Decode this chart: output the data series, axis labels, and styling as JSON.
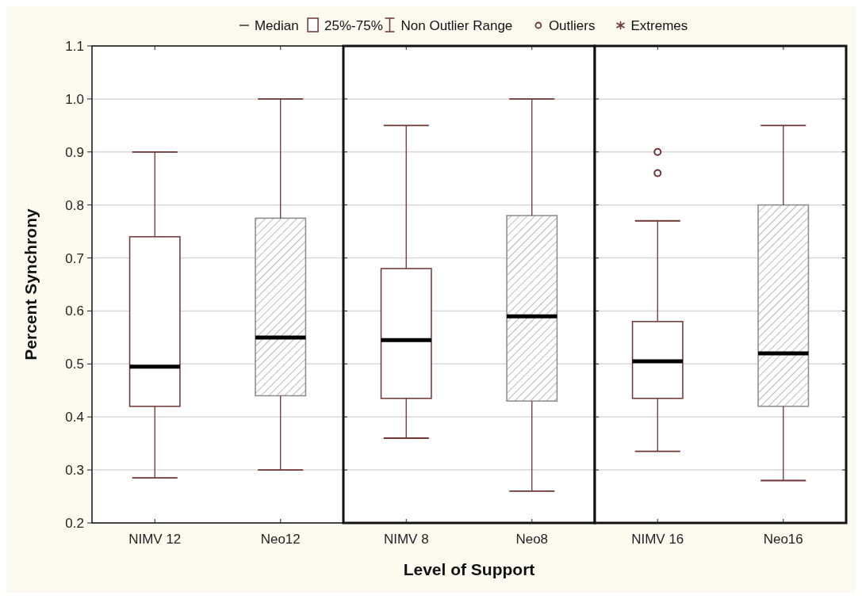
{
  "chart_data": [
    {
      "type": "box",
      "ylabel": "Percent Synchrony",
      "annotations": [
        "Median",
        "25%-75%",
        "Non Outlier Range",
        "Outliers",
        "Extremes"
      ],
      "categories": [
        "NIMV 12",
        "Neo12"
      ],
      "colors": [
        "#6e3434",
        "#8a8a8a"
      ],
      "ylim": [
        0.2,
        1.1
      ],
      "yticks": [
        0.2,
        0.3,
        0.4,
        0.5,
        0.6,
        0.7,
        0.8,
        0.9,
        {
          "value": 1,
          "label": "1.0"
        },
        1.1
      ],
      "grid": "y",
      "boxes": [
        {
          "low": 0.285,
          "q1": 0.42,
          "median": 0.495,
          "q3": 0.74,
          "high": 0.9
        },
        {
          "low": 0.3,
          "q1": 0.44,
          "median": 0.55,
          "q3": 0.775,
          "high": 1.0
        }
      ]
    },
    {
      "type": "box",
      "xlabel": "Level of Support",
      "categories": [
        "NIMV 8",
        "Neo8"
      ],
      "colors": [
        "#6e3434",
        "#8a8a8a"
      ],
      "ylim": [
        0.2,
        1.1
      ],
      "yticks": [
        0.2,
        0.3,
        0.4,
        0.5,
        0.6,
        0.7,
        0.8,
        0.9,
        1,
        1.1
      ],
      "grid": "y",
      "tick_labels": "x",
      "boxes": [
        {
          "low": 0.36,
          "q1": 0.435,
          "median": 0.545,
          "q3": 0.68,
          "high": 0.95
        },
        {
          "low": 0.26,
          "q1": 0.43,
          "median": 0.59,
          "q3": 0.78,
          "high": 1.0
        }
      ]
    },
    {
      "type": "box",
      "categories": [
        "NIMV 16",
        "Neo16"
      ],
      "colors": [
        "#6e3434",
        "#8a8a8a"
      ],
      "ylim": [
        0.2,
        1.1
      ],
      "yticks": [
        0.2,
        0.3,
        0.4,
        0.5,
        0.6,
        0.7,
        0.8,
        0.9,
        1,
        1.1
      ],
      "grid": "y",
      "tick_labels": "x",
      "marker": "circle",
      "boxes": [
        {
          "low": 0.335,
          "q1": 0.435,
          "median": 0.505,
          "q3": 0.58,
          "high": 0.77,
          "outliers": [
            0.86,
            0.9
          ]
        },
        {
          "low": 0.28,
          "q1": 0.42,
          "median": 0.52,
          "q3": 0.8,
          "high": 0.95
        }
      ]
    }
  ]
}
